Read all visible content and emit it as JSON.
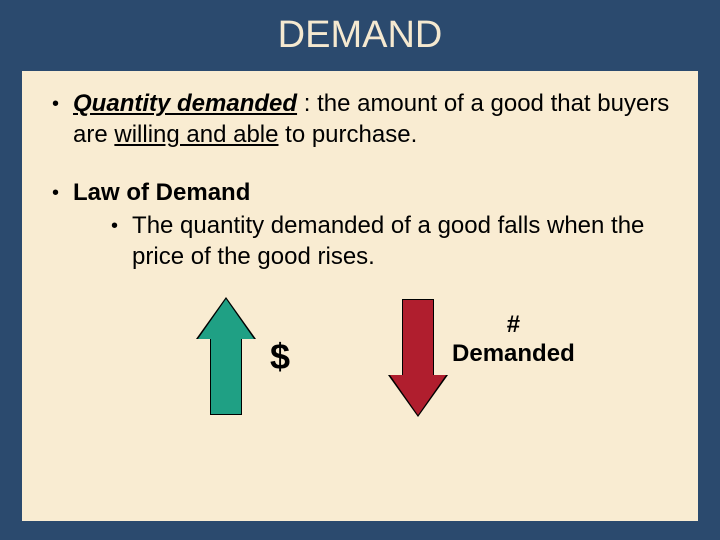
{
  "title": "DEMAND",
  "bullet1": {
    "term": "Quantity demanded",
    "space": " ",
    "colon": ": ",
    "pre": "the amount of a good that buyers are ",
    "underlined": "willing and able",
    "post": " to purchase."
  },
  "bullet2": {
    "heading": "Law of Demand",
    "sub": "The quantity demanded of a good falls when the price of the good rises."
  },
  "arrows": {
    "dollar": "$",
    "hash": "#",
    "demanded": "Demanded",
    "up_color": "#1fa084",
    "down_color": "#b01e2e"
  },
  "colors": {
    "slide_bg": "#2b4a6e",
    "content_bg": "#f9ecd2",
    "title_color": "#f5e9d0"
  }
}
